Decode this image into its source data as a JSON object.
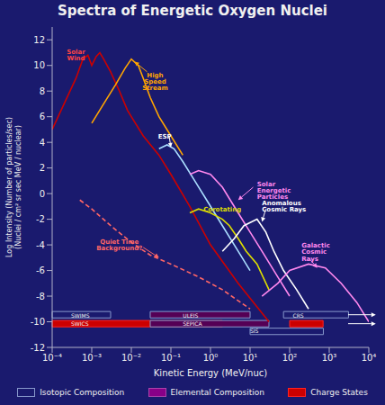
{
  "chart_data": {
    "type": "line",
    "title": "Spectra of Energetic Oxygen Nuclei",
    "xlabel": "Kinetic Energy (MeV/nuc)",
    "ylabel": "Log Intensity (Number of particles/sec)\n(Nuclei / cm² sr sec MeV / nuclear)",
    "log": "x",
    "grid": false,
    "xlim": [
      0.0001,
      10000
    ],
    "xticks": [
      {
        "value": 0.0001,
        "label": "10⁻⁴"
      },
      {
        "value": 0.001,
        "label": "10⁻³"
      },
      {
        "value": 0.01,
        "label": "10⁻²"
      },
      {
        "value": 0.1,
        "label": "10⁻¹"
      },
      {
        "value": 1,
        "label": "10⁰"
      },
      {
        "value": 10,
        "label": "10¹"
      },
      {
        "value": 100,
        "label": "10²"
      },
      {
        "value": 1000,
        "label": "10³"
      },
      {
        "value": 10000,
        "label": "10⁴"
      }
    ],
    "ylim": [
      -12,
      13
    ],
    "yticks": [
      -12,
      -10,
      -8,
      -6,
      -4,
      -2,
      0,
      2,
      4,
      6,
      8,
      10,
      12
    ],
    "series": [
      {
        "color": "#CC0000",
        "x": [
          0.0001,
          0.0002,
          0.0004,
          0.0006,
          0.0008,
          0.001,
          0.0013,
          0.0016,
          0.002,
          0.003,
          0.005,
          0.008,
          0.01,
          0.02,
          0.05,
          0.1,
          0.3,
          1,
          5,
          30
        ],
        "values": [
          5,
          7,
          9,
          10.5,
          10.8,
          10,
          10.7,
          11,
          10.5,
          9.5,
          8,
          6.5,
          6,
          4.5,
          3,
          1.5,
          -1,
          -4,
          -7,
          -10
        ]
      },
      {
        "color": "#FFA500",
        "x": [
          0.001,
          0.002,
          0.004,
          0.007,
          0.01,
          0.015,
          0.02,
          0.03,
          0.05,
          0.1,
          0.2
        ],
        "values": [
          5.5,
          7.0,
          8.5,
          9.8,
          10.5,
          10.0,
          9.0,
          7.5,
          6.0,
          4.5,
          3.0
        ]
      },
      {
        "color": "#AADDFF",
        "x": [
          0.05,
          0.08,
          0.12,
          0.2,
          0.4,
          0.8,
          2,
          5,
          10
        ],
        "values": [
          3.5,
          3.8,
          3.5,
          2.5,
          1.0,
          -0.5,
          -2.5,
          -4.5,
          -6
        ]
      },
      {
        "color": "#DDDD00",
        "x": [
          0.3,
          0.5,
          1,
          2,
          3,
          5,
          8,
          15,
          30
        ],
        "values": [
          -1.5,
          -1.2,
          -1.5,
          -2.0,
          -2.5,
          -3.5,
          -4.5,
          -5.5,
          -7.5
        ]
      },
      {
        "color": "#FF6666",
        "line_style": "dashed",
        "x": [
          0.0005,
          0.001,
          0.003,
          0.01,
          0.03,
          0.1,
          0.5,
          2,
          10
        ],
        "values": [
          -0.5,
          -1.2,
          -2.5,
          -3.8,
          -4.8,
          -5.5,
          -6.5,
          -7.5,
          -9
        ]
      },
      {
        "color": "#FF88EE",
        "x": [
          0.3,
          0.5,
          1,
          2,
          5,
          10,
          20,
          50,
          100
        ],
        "values": [
          1.5,
          1.8,
          1.5,
          0.5,
          -1.5,
          -3.0,
          -4.5,
          -6.5,
          -8
        ]
      },
      {
        "color": "#FFFFFF",
        "x": [
          2,
          4,
          7,
          15,
          25,
          40,
          70,
          150,
          300
        ],
        "values": [
          -4.5,
          -3.5,
          -2.5,
          -2.0,
          -3.0,
          -4.5,
          -6.0,
          -7.5,
          -9
        ]
      },
      {
        "color": "#FF88EE",
        "x": [
          20,
          50,
          100,
          300,
          800,
          2000,
          5000,
          10000
        ],
        "values": [
          -8,
          -7,
          -6.0,
          -5.5,
          -5.8,
          -7.0,
          -8.5,
          -10
        ]
      }
    ],
    "ranges": [
      {
        "x": [
          0.0001,
          0.003
        ],
        "y": [
          -9.7,
          -9.2
        ],
        "edgecolor": "#8899CC"
      },
      {
        "x": [
          0.03,
          10
        ],
        "y": [
          -9.7,
          -9.2
        ],
        "color": "#550055",
        "edgecolor": "#8899CC"
      },
      {
        "x": [
          70,
          3070
        ],
        "y": [
          -9.7,
          -9.2
        ],
        "edgecolor": "#8899CC"
      },
      {
        "x": [
          0.0001,
          2
        ],
        "y": [
          -10.4,
          -9.9
        ],
        "color": "#CC0000",
        "edgecolor": "#FF2222"
      },
      {
        "x": [
          0.03,
          30
        ],
        "y": [
          -10.4,
          -9.9
        ],
        "color": "#550055",
        "edgecolor": "#8899CC"
      },
      {
        "x": [
          10,
          710
        ],
        "y": [
          -11.0,
          -10.5
        ],
        "edgecolor": "#8899CC"
      },
      {
        "x": [
          100,
          700
        ],
        "y": [
          -10.4,
          -9.9
        ],
        "color": "#CC0000",
        "edgecolor": "#FF2222"
      }
    ],
    "range_labels": [
      {
        "text": "SWIMS",
        "x": 0.0003,
        "y": -9.55
      },
      {
        "text": "ULEIS",
        "x": 0.2,
        "y": -9.55
      },
      {
        "text": "CRS",
        "x": 120,
        "y": -9.55
      },
      {
        "text": "SWICS",
        "x": 0.0003,
        "y": -10.15
      },
      {
        "text": "SEPICA",
        "x": 0.2,
        "y": -10.15
      },
      {
        "text": "SIS",
        "x": 10,
        "y": -10.75
      }
    ],
    "annotations": [
      {
        "text": "Solar\nWind",
        "x": 0.0004,
        "y": 11.3,
        "color": "#FF4444",
        "align": "center"
      },
      {
        "text": "High\nSpeed\nStream",
        "x": 0.04,
        "y": 9.5,
        "color": "#FFA500",
        "align": "center"
      },
      {
        "text": "ESP",
        "x": 0.07,
        "y": 4.7,
        "color": "#FFFFFF",
        "align": "center"
      },
      {
        "text": "Corotating",
        "x": 2,
        "y": -1.0,
        "color": "#DDDD00",
        "align": "center"
      },
      {
        "text": "Quiet Time\nBackground?",
        "x": 0.005,
        "y": -3.5,
        "color": "#FF6666",
        "align": "center"
      },
      {
        "text": "Solar\nEnergetic\nParticles",
        "x": 15,
        "y": 1.0,
        "color": "#FF88EE",
        "align": "left"
      },
      {
        "text": "Anomalous\nCosmic Rays",
        "x": 20,
        "y": -0.5,
        "color": "#FFFFFF",
        "align": "left"
      },
      {
        "text": "Galactic\nCosmic\nRays",
        "x": 200,
        "y": -3.8,
        "color": "#FF88EE",
        "align": "left"
      }
    ],
    "arrows": [
      {
        "x": [
          3000,
          15000
        ],
        "y": [
          -9.45,
          -9.45
        ],
        "color": "#FFFFFF"
      },
      {
        "x": [
          3000,
          15000
        ],
        "y": [
          -10.15,
          -10.15
        ],
        "color": "#FFFFFF"
      },
      {
        "x": [
          0.025,
          0.012
        ],
        "y": [
          9.5,
          10.3
        ],
        "color": "#FFA500"
      },
      {
        "x": [
          0.09,
          0.1
        ],
        "y": [
          4.5,
          3.6
        ],
        "color": "#FFFFFF"
      },
      {
        "x": [
          0.02,
          0.05
        ],
        "y": [
          -4.2,
          -5.0
        ],
        "color": "#FF6666"
      },
      {
        "x": [
          12,
          5
        ],
        "y": [
          0.5,
          -0.5
        ],
        "color": "#FF88EE"
      },
      {
        "x": [
          25,
          20
        ],
        "y": [
          -1.2,
          -2.2
        ],
        "color": "#FFFFFF"
      },
      {
        "x": [
          300,
          500
        ],
        "y": [
          -5.0,
          -5.8
        ],
        "color": "#FF88EE"
      }
    ],
    "legend_items": [
      {
        "label": "Isotopic Composition",
        "edgecolor": "#8899CC"
      },
      {
        "label": "Elemental Composition",
        "color": "#880088",
        "edgecolor": "#AA44AA"
      },
      {
        "label": "Charge States",
        "color": "#CC0000",
        "edgecolor": "#FF2222"
      }
    ]
  }
}
